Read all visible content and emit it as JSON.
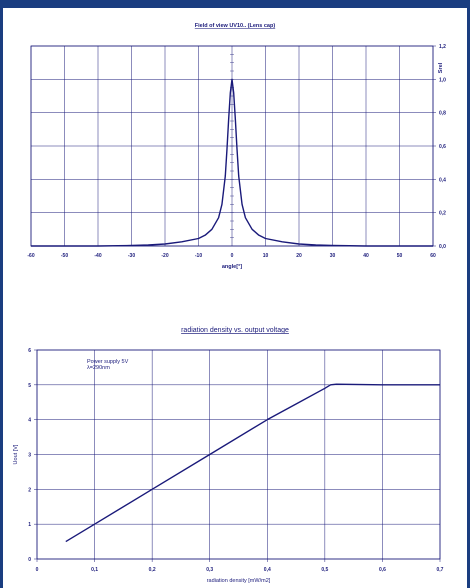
{
  "chart_data": [
    {
      "type": "line",
      "title": "Field of view UV10.. (Lens cap)",
      "xlabel": "angle[°]",
      "ylabel": "Srel",
      "xlim": [
        -60,
        60
      ],
      "ylim": [
        0,
        1.2
      ],
      "x_ticks": [
        "-60",
        "-50",
        "-40",
        "-30",
        "-20",
        "-10",
        "0",
        "10",
        "20",
        "30",
        "40",
        "50",
        "60"
      ],
      "y_ticks": [
        "0,0",
        "0,2",
        "0,4",
        "0,6",
        "0,8",
        "1,0",
        "1,2"
      ],
      "y_axis_side": "right",
      "grid": true,
      "series": [
        {
          "x": [
            -60,
            -40,
            -30,
            -25,
            -20,
            -15,
            -10,
            -8,
            -6,
            -4,
            -3,
            -2,
            -1.5,
            -1,
            -0.5,
            0,
            0.5,
            1,
            1.5,
            2,
            3,
            4,
            6,
            8,
            10,
            15,
            20,
            25,
            30,
            40,
            60
          ],
          "y": [
            0.0,
            0.0,
            0.003,
            0.006,
            0.012,
            0.025,
            0.045,
            0.065,
            0.1,
            0.17,
            0.25,
            0.42,
            0.58,
            0.76,
            0.92,
            1.0,
            0.92,
            0.76,
            0.58,
            0.42,
            0.25,
            0.17,
            0.1,
            0.065,
            0.045,
            0.025,
            0.012,
            0.006,
            0.003,
            0.0,
            0.0
          ]
        }
      ]
    },
    {
      "type": "line",
      "title": "radiation density vs. output voltage",
      "xlabel": "radiation density [mW/m2]",
      "ylabel": "Uout [V]",
      "xlim": [
        0,
        0.7
      ],
      "ylim": [
        0,
        6
      ],
      "x_ticks": [
        "0",
        "0,1",
        "0,2",
        "0,3",
        "0,4",
        "0,5",
        "0,6",
        "0,7"
      ],
      "y_ticks": [
        "0",
        "1",
        "2",
        "3",
        "4",
        "5",
        "6"
      ],
      "grid": true,
      "annotation": [
        "Power supply 5V",
        "λ=290nm"
      ],
      "series": [
        {
          "x": [
            0.05,
            0.1,
            0.2,
            0.3,
            0.4,
            0.45,
            0.5,
            0.51,
            0.52,
            0.6,
            0.7
          ],
          "y": [
            0.5,
            1.0,
            2.0,
            3.0,
            4.0,
            4.45,
            4.9,
            5.0,
            5.02,
            5.0,
            5.0
          ]
        }
      ]
    }
  ]
}
